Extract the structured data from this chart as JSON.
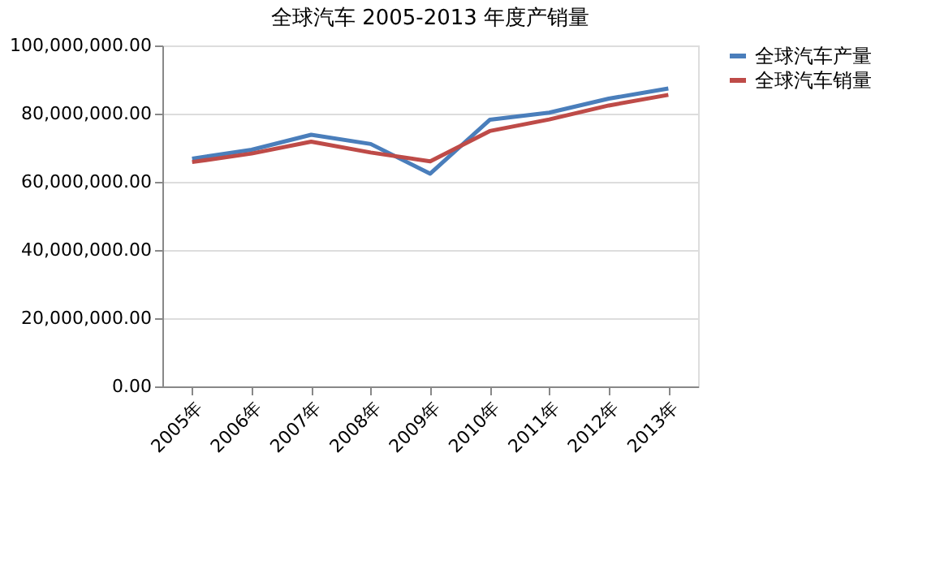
{
  "chart_data": {
    "type": "line",
    "title": "全球汽车 2005-2013 年度产销量",
    "categories": [
      "2005年",
      "2006年",
      "2007年",
      "2008年",
      "2009年",
      "2010年",
      "2011年",
      "2012年",
      "2013年"
    ],
    "series": [
      {
        "name": "全球汽车产量",
        "color": "#4a7ebb",
        "values": [
          66800000,
          69400000,
          73800000,
          71100000,
          62400000,
          78200000,
          80300000,
          84400000,
          87400000
        ]
      },
      {
        "name": "全球汽车销量",
        "color": "#be4b48",
        "values": [
          65800000,
          68300000,
          71800000,
          68600000,
          66000000,
          74900000,
          78300000,
          82400000,
          85500000
        ]
      }
    ],
    "ylim": [
      0,
      100000000
    ],
    "yticks": [
      {
        "value": 0,
        "label": "0.00"
      },
      {
        "value": 20000000,
        "label": "20,000,000.00"
      },
      {
        "value": 40000000,
        "label": "40,000,000.00"
      },
      {
        "value": 60000000,
        "label": "60,000,000.00"
      },
      {
        "value": 80000000,
        "label": "80,000,000.00"
      },
      {
        "value": 100000000,
        "label": "100,000,000.00"
      }
    ],
    "grid": "y",
    "legend": "right",
    "marker": "none",
    "line_style": "solid"
  }
}
